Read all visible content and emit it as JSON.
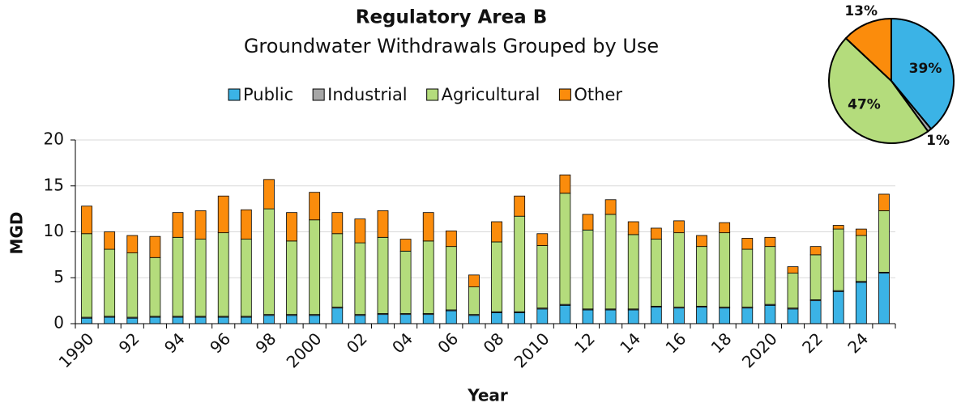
{
  "chart_data": [
    {
      "type": "bar",
      "stacked": true,
      "title": "Regulatory Area B",
      "subtitle": "Groundwater Withdrawals Grouped by Use",
      "x_label": "Year",
      "y_label": "MGD",
      "categories": [
        "1990",
        null,
        "92",
        null,
        "94",
        null,
        "96",
        null,
        "98",
        null,
        "2000",
        null,
        "02",
        null,
        "04",
        null,
        "06",
        null,
        "08",
        null,
        "2010",
        null,
        "12",
        null,
        "14",
        null,
        "16",
        null,
        "18",
        null,
        "2020",
        null,
        "22",
        null,
        "24",
        null
      ],
      "series": [
        {
          "name": "Public",
          "color": "#3bb3e6",
          "values": [
            0.6,
            0.7,
            0.6,
            0.7,
            0.7,
            0.7,
            0.7,
            0.7,
            0.9,
            0.9,
            0.9,
            1.7,
            0.9,
            1.0,
            1.0,
            1.0,
            1.4,
            0.9,
            1.2,
            1.2,
            1.6,
            2.0,
            1.5,
            1.5,
            1.5,
            1.8,
            1.7,
            1.8,
            1.7,
            1.7,
            2.0,
            1.6,
            2.5,
            3.5,
            4.5,
            5.5
          ]
        },
        {
          "name": "Industrial",
          "color": "#a6a6a6",
          "values": [
            0.1,
            0.1,
            0.1,
            0.1,
            0.1,
            0.1,
            0.1,
            0.1,
            0.1,
            0.1,
            0.1,
            0.1,
            0.1,
            0.1,
            0.1,
            0.1,
            0.1,
            0.1,
            0.1,
            0.1,
            0.1,
            0.1,
            0.1,
            0.1,
            0.1,
            0.1,
            0.1,
            0.1,
            0.1,
            0.1,
            0.1,
            0.1,
            0.1,
            0.1,
            0.1,
            0.1
          ]
        },
        {
          "name": "Agricultural",
          "color": "#b4dc7c",
          "values": [
            9.1,
            7.3,
            7.0,
            6.4,
            8.6,
            8.4,
            9.1,
            8.4,
            11.5,
            8.0,
            10.3,
            8.0,
            7.8,
            8.3,
            6.8,
            7.9,
            6.9,
            3.0,
            7.6,
            10.4,
            6.8,
            12.1,
            8.6,
            10.3,
            8.1,
            7.3,
            8.1,
            6.5,
            8.1,
            6.3,
            6.3,
            3.8,
            4.9,
            6.7,
            5.0,
            6.7
          ]
        },
        {
          "name": "Other",
          "color": "#fb8c0c",
          "values": [
            3.0,
            1.9,
            1.9,
            2.3,
            2.7,
            3.1,
            4.0,
            3.2,
            3.2,
            3.1,
            3.0,
            2.3,
            2.6,
            2.9,
            1.3,
            3.1,
            1.7,
            1.3,
            2.2,
            2.2,
            1.3,
            2.0,
            1.7,
            1.6,
            1.4,
            1.2,
            1.3,
            1.2,
            1.1,
            1.2,
            1.0,
            0.7,
            0.9,
            0.4,
            0.7,
            1.8
          ]
        }
      ],
      "ylim": [
        0,
        20
      ],
      "yticks": [
        0,
        5,
        10,
        15,
        20
      ],
      "grid": true,
      "legend": "top"
    },
    {
      "type": "pie",
      "values": [
        39,
        1,
        47,
        13
      ],
      "value_labels": [
        "39%",
        "1%",
        "47%",
        "13%"
      ],
      "colors": [
        "#3bb3e6",
        "#a6a6a6",
        "#b4dc7c",
        "#fb8c0c"
      ]
    }
  ]
}
